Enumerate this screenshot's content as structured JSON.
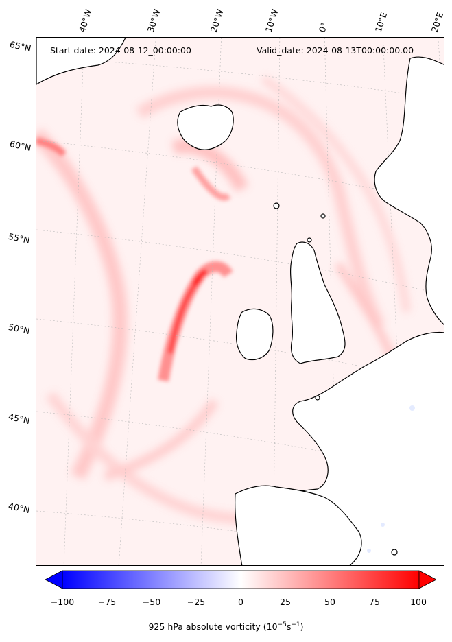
{
  "header": {
    "start_date": "Start date: 2024-08-12_00:00:00",
    "valid_date": "Valid_date: 2024-08-13T00:00:00.00"
  },
  "map": {
    "field": "925 hPa absolute vorticity",
    "lat_labels": [
      "65°N",
      "60°N",
      "55°N",
      "50°N",
      "45°N",
      "40°N"
    ],
    "lon_labels": [
      "40°W",
      "30°W",
      "20°W",
      "10°W",
      "0°",
      "10°E",
      "20°E"
    ],
    "colors": {
      "land": "#ffffff",
      "ocean_bg": "#fff2f2",
      "coast": "#000000",
      "positive": "#ff0000",
      "negative": "#0000ff"
    }
  },
  "colorbar": {
    "ticks": [
      "−100",
      "−75",
      "−50",
      "−25",
      "0",
      "25",
      "50",
      "75",
      "100"
    ],
    "range": [
      -100,
      100
    ],
    "label_main": "925 hPa absolute vorticity (10",
    "label_exp1": "−5",
    "label_mid": "s",
    "label_exp2": "−1",
    "label_end": ")"
  }
}
